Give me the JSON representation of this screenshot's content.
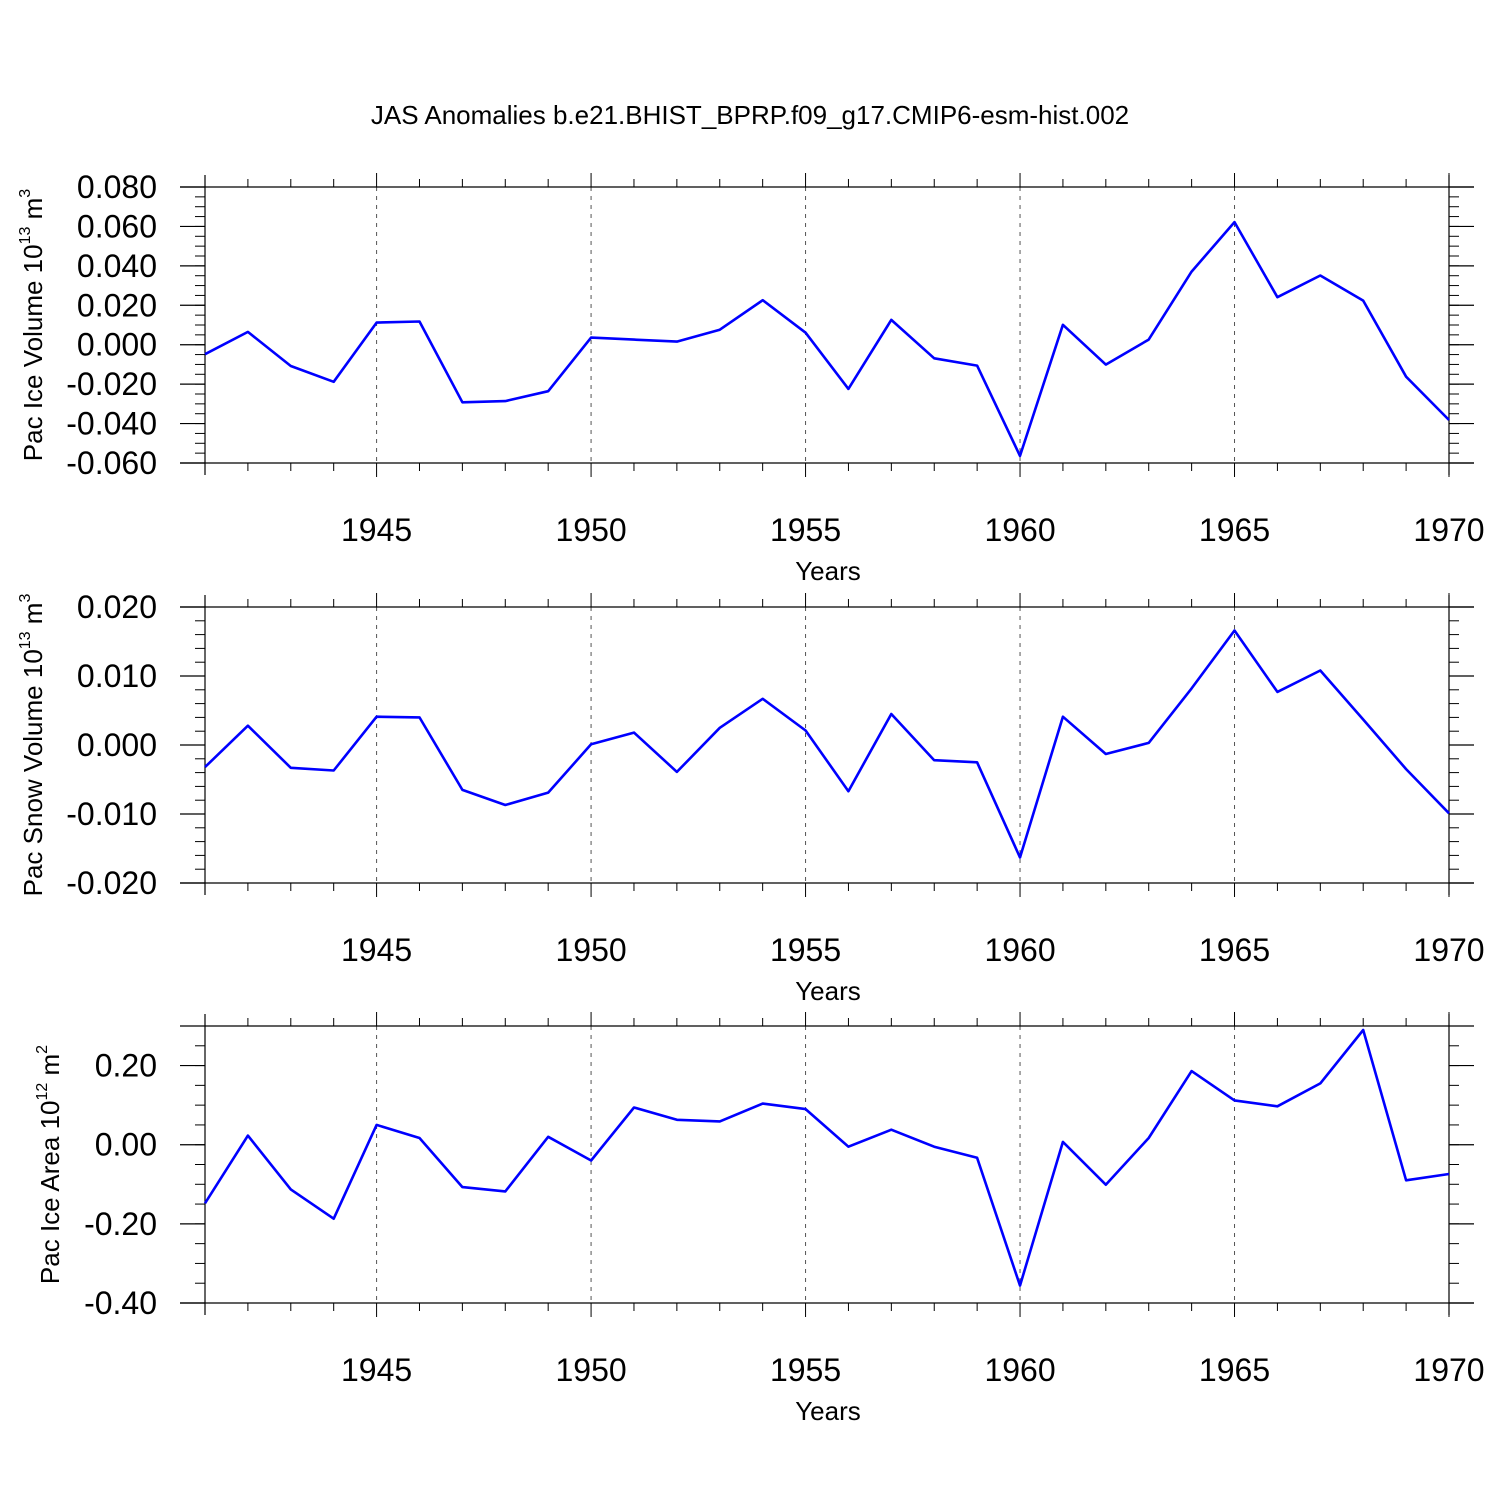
{
  "title": "JAS Anomalies b.e21.BHIST_BPRP.f09_g17.CMIP6-esm-hist.002",
  "line_color": "#0000ff",
  "grid_color": "#555555",
  "chart_data": [
    {
      "type": "line",
      "ylabel_main": "Pac Ice Volume 10",
      "ylabel_sup1": "13",
      "ylabel_mid": " m",
      "ylabel_sup2": "3",
      "xlabel": "Years",
      "xlim": [
        1941,
        1970
      ],
      "ylim": [
        -0.06,
        0.08
      ],
      "yticks": [
        -0.06,
        -0.04,
        -0.02,
        0.0,
        0.02,
        0.04,
        0.06,
        0.08
      ],
      "ytick_labels": [
        "-0.060",
        "-0.040",
        "-0.020",
        "0.000",
        "0.020",
        "0.040",
        "0.060",
        "0.080"
      ],
      "yminor_step": 0.005,
      "xticks": [
        1945,
        1950,
        1955,
        1960,
        1965,
        1970
      ],
      "xtick_labels": [
        "1945",
        "1950",
        "1955",
        "1960",
        "1965",
        "1970"
      ],
      "grid": "dashed vertical at labeled years",
      "x": [
        1941,
        1942,
        1943,
        1944,
        1945,
        1946,
        1947,
        1948,
        1949,
        1950,
        1951,
        1952,
        1953,
        1954,
        1955,
        1956,
        1957,
        1958,
        1959,
        1960,
        1961,
        1962,
        1963,
        1964,
        1965,
        1966,
        1967,
        1968,
        1969,
        1970
      ],
      "values": [
        -0.0048,
        0.0065,
        -0.0108,
        -0.0188,
        0.0112,
        0.0118,
        -0.0292,
        -0.0286,
        -0.0236,
        0.0036,
        0.0026,
        0.0016,
        0.0076,
        0.0226,
        0.0061,
        -0.0224,
        0.0126,
        -0.0069,
        -0.0106,
        -0.0564,
        0.0101,
        -0.0101,
        0.0026,
        0.0371,
        0.0622,
        0.0241,
        0.0351,
        0.0224,
        -0.0162,
        -0.0382
      ]
    },
    {
      "type": "line",
      "ylabel_main": "Pac Snow Volume 10",
      "ylabel_sup1": "13",
      "ylabel_mid": " m",
      "ylabel_sup2": "3",
      "xlabel": "Years",
      "xlim": [
        1941,
        1970
      ],
      "ylim": [
        -0.02,
        0.02
      ],
      "yticks": [
        -0.02,
        -0.01,
        0.0,
        0.01,
        0.02
      ],
      "ytick_labels": [
        "-0.020",
        "-0.010",
        "0.000",
        "0.010",
        "0.020"
      ],
      "yminor_step": 0.002,
      "xticks": [
        1945,
        1950,
        1955,
        1960,
        1965,
        1970
      ],
      "xtick_labels": [
        "1945",
        "1950",
        "1955",
        "1960",
        "1965",
        "1970"
      ],
      "grid": "dashed vertical at labeled years",
      "x": [
        1941,
        1942,
        1943,
        1944,
        1945,
        1946,
        1947,
        1948,
        1949,
        1950,
        1951,
        1952,
        1953,
        1954,
        1955,
        1956,
        1957,
        1958,
        1959,
        1960,
        1961,
        1962,
        1963,
        1964,
        1965,
        1966,
        1967,
        1968,
        1969,
        1970
      ],
      "values": [
        -0.0032,
        0.0028,
        -0.0033,
        -0.0037,
        0.0041,
        0.004,
        -0.0065,
        -0.0087,
        -0.0069,
        0.0001,
        0.0018,
        -0.0039,
        0.0025,
        0.0067,
        0.0021,
        -0.0067,
        0.0045,
        -0.0022,
        -0.0025,
        -0.0163,
        0.0041,
        -0.0013,
        0.0003,
        0.0082,
        0.0166,
        0.0077,
        0.0108,
        0.0037,
        -0.0035,
        -0.0099
      ]
    },
    {
      "type": "line",
      "ylabel_main": "Pac Ice Area 10",
      "ylabel_sup1": "12",
      "ylabel_mid": " m",
      "ylabel_sup2": "2",
      "xlabel": "Years",
      "xlim": [
        1941,
        1970
      ],
      "ylim": [
        -0.4,
        0.3
      ],
      "yticks": [
        -0.4,
        -0.2,
        0.0,
        0.2
      ],
      "ytick_labels": [
        "-0.40",
        "-0.20",
        "0.00",
        "0.20"
      ],
      "yminor_step": 0.05,
      "xticks": [
        1945,
        1950,
        1955,
        1960,
        1965,
        1970
      ],
      "xtick_labels": [
        "1945",
        "1950",
        "1955",
        "1960",
        "1965",
        "1970"
      ],
      "grid": "dashed vertical at labeled years",
      "x": [
        1941,
        1942,
        1943,
        1944,
        1945,
        1946,
        1947,
        1948,
        1949,
        1950,
        1951,
        1952,
        1953,
        1954,
        1955,
        1956,
        1957,
        1958,
        1959,
        1960,
        1961,
        1962,
        1963,
        1964,
        1965,
        1966,
        1967,
        1968,
        1969,
        1970
      ],
      "values": [
        -0.148,
        0.023,
        -0.113,
        -0.187,
        0.05,
        0.017,
        -0.107,
        -0.118,
        0.02,
        -0.04,
        0.094,
        0.063,
        0.059,
        0.104,
        0.09,
        -0.005,
        0.038,
        -0.005,
        -0.033,
        -0.356,
        0.007,
        -0.101,
        0.017,
        0.186,
        0.112,
        0.097,
        0.155,
        0.29,
        -0.09,
        -0.074
      ]
    }
  ]
}
